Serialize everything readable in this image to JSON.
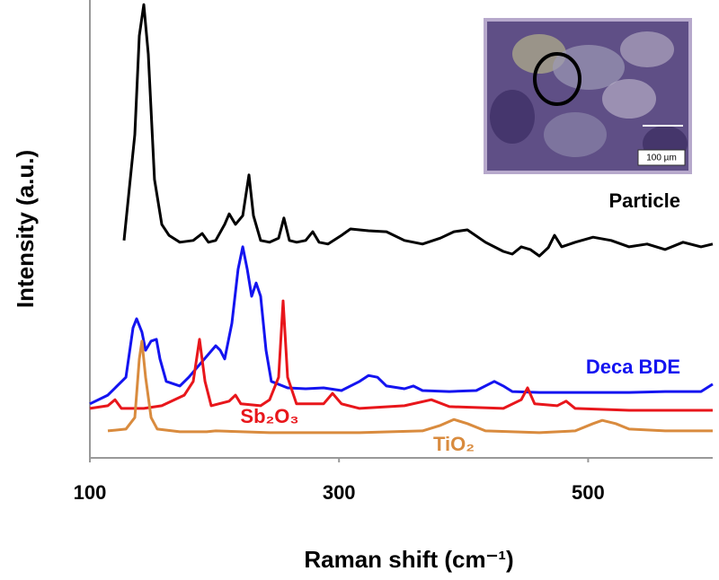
{
  "chart_data": {
    "type": "line",
    "xlabel": "Raman shift  (cm⁻¹)",
    "ylabel": "Intensity (a.u.)",
    "xlim": [
      100,
      600
    ],
    "xticks": [
      100,
      300,
      500
    ],
    "ylim": [
      0,
      100
    ],
    "grid": false,
    "annotations": [
      "100 µm"
    ],
    "series": [
      {
        "name": "Particle",
        "color": "#000000",
        "x": [
          127.4,
          136.1,
          139.7,
          143.3,
          146.9,
          151.9,
          157.7,
          163.5,
          172.2,
          183.0,
          190.2,
          195.2,
          201.0,
          208.2,
          211.8,
          216.9,
          222.7,
          227.7,
          231.3,
          237.1,
          244.3,
          251.5,
          255.8,
          260.2,
          266.0,
          273.2,
          278.9,
          284.0,
          291.2,
          302.0,
          309.2,
          323.7,
          338.1,
          352.5,
          367.0,
          381.4,
          392.2,
          403.0,
          417.5,
          431.9,
          439.1,
          446.3,
          453.5,
          460.8,
          468.0,
          473.0,
          478.8,
          489.6,
          504.0,
          518.5,
          532.9,
          547.3,
          561.8,
          576.2,
          590.6,
          600
        ],
        "values": [
          47.5,
          70.6,
          92.2,
          99.0,
          88.2,
          60.8,
          51.0,
          48.6,
          47.1,
          47.5,
          49.0,
          47.1,
          47.5,
          51.0,
          53.3,
          51.0,
          52.9,
          61.8,
          52.9,
          47.5,
          47.1,
          48.0,
          52.4,
          47.5,
          47.1,
          47.5,
          49.4,
          47.1,
          46.7,
          48.6,
          50.0,
          49.6,
          49.4,
          47.5,
          46.7,
          48.0,
          49.4,
          49.8,
          47.1,
          45.1,
          44.5,
          46.1,
          45.5,
          44.1,
          45.9,
          48.6,
          46.1,
          47.1,
          48.2,
          47.5,
          46.1,
          46.7,
          45.5,
          47.1,
          46.1,
          46.7
        ]
      },
      {
        "name": "Deca BDE",
        "color": "#1414f0",
        "x": [
          100,
          114.4,
          128.9,
          134.6,
          137.5,
          141.8,
          144.7,
          149.1,
          153.4,
          156.3,
          161.3,
          172.2,
          179.4,
          201.0,
          204.6,
          208.2,
          214.0,
          219.0,
          222.7,
          226.3,
          229.9,
          233.5,
          237.1,
          241.4,
          245.7,
          258.7,
          273.2,
          287.6,
          302.0,
          316.5,
          323.7,
          330.9,
          338.1,
          352.5,
          359.7,
          367.0,
          388.6,
          410.2,
          424.7,
          431.9,
          439.1,
          460.8,
          532.9,
          561.8,
          590.6,
          600
        ],
        "values": [
          11.8,
          13.7,
          17.6,
          28.4,
          30.4,
          27.5,
          23.5,
          25.5,
          25.9,
          21.6,
          16.7,
          15.7,
          17.6,
          24.5,
          23.5,
          21.6,
          29.4,
          41.2,
          46.1,
          41.2,
          35.3,
          38.2,
          35.3,
          23.5,
          16.7,
          15.3,
          15.1,
          15.3,
          14.7,
          16.7,
          18.0,
          17.6,
          15.7,
          15.1,
          15.7,
          14.7,
          14.5,
          14.7,
          16.7,
          15.7,
          14.5,
          14.3,
          14.3,
          14.5,
          14.5,
          16.1
        ]
      },
      {
        "name": "Sb₂O₃",
        "color": "#e8161b",
        "x": [
          100,
          114.4,
          120.2,
          125.3,
          143.3,
          157.7,
          175.8,
          183.0,
          188.0,
          192.4,
          197.4,
          211.8,
          216.9,
          221.2,
          237.1,
          244.3,
          251.5,
          255.1,
          258.7,
          265.9,
          287.6,
          294.8,
          302.0,
          316.5,
          352.5,
          374.1,
          388.6,
          431.9,
          446.3,
          451.4,
          457.1,
          475.1,
          482.3,
          489.6,
          532.9,
          600
        ],
        "values": [
          10.8,
          11.4,
          12.7,
          10.8,
          10.8,
          11.4,
          13.7,
          16.7,
          25.9,
          16.7,
          11.4,
          12.4,
          13.7,
          11.8,
          11.4,
          12.7,
          17.6,
          34.3,
          17.6,
          11.8,
          11.8,
          14.1,
          11.8,
          10.8,
          11.4,
          12.7,
          11.2,
          10.8,
          12.7,
          15.3,
          11.8,
          11.4,
          12.4,
          10.8,
          10.4,
          10.4
        ]
      },
      {
        "name": "TiO₂",
        "color": "#d98b3e",
        "x": [
          114.4,
          128.9,
          136.1,
          139.7,
          141.8,
          144.7,
          149.1,
          154.1,
          172.2,
          193.8,
          201.0,
          244.3,
          316.5,
          367.0,
          381.4,
          392.2,
          403.0,
          417.5,
          460.8,
          489.6,
          504.0,
          511.3,
          522.1,
          532.9,
          561.8,
          600
        ],
        "values": [
          5.9,
          6.3,
          8.8,
          21.6,
          25.5,
          17.6,
          8.8,
          6.3,
          5.7,
          5.7,
          5.9,
          5.5,
          5.5,
          5.9,
          7.1,
          8.4,
          7.5,
          5.9,
          5.5,
          5.9,
          7.5,
          8.2,
          7.5,
          6.3,
          5.9,
          5.9
        ]
      }
    ]
  }
}
